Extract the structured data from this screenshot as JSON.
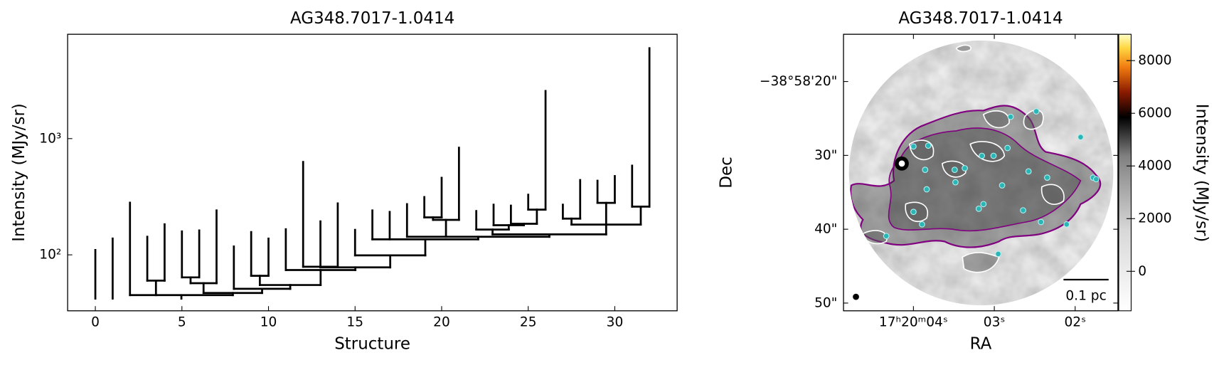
{
  "chart_data": [
    {
      "type": "dendrogram",
      "title": "AG348.7017-1.0414",
      "xlabel": "Structure",
      "ylabel": "Intensity (MJy/sr)",
      "xlim": [
        -1.6,
        33.6
      ],
      "ylim": [
        33,
        7900
      ],
      "yscale": "log",
      "xticks": [
        0,
        5,
        10,
        15,
        20,
        25,
        30
      ],
      "yticks": [
        {
          "value": 100,
          "label": "10²"
        },
        {
          "value": 1000,
          "label": "10³"
        }
      ],
      "color": "#000000",
      "structures": [
        0,
        1,
        2,
        3,
        4,
        5,
        6,
        7,
        8,
        9,
        10,
        11,
        12,
        13,
        14,
        15,
        16,
        17,
        18,
        19,
        20,
        21,
        22,
        23,
        24,
        25,
        26,
        27,
        28,
        29,
        30,
        31,
        32
      ],
      "leaves": {
        "peaks": [
          110,
          138,
          281,
          143,
          183,
          159,
          162,
          241,
          118,
          157,
          138,
          166,
          630,
          194,
          277,
          164,
          241,
          234,
          273,
          314,
          460,
          835,
          238,
          270,
          265,
          329,
          2570,
          270,
          440,
          434,
          476,
          585,
          6000
        ],
        "bases": [
          42,
          42,
          45,
          60,
          60,
          64,
          64,
          57,
          51,
          66,
          66,
          74,
          79,
          79,
          79,
          99,
          136,
          136,
          143,
          210,
          210,
          200,
          165,
          180,
          185,
          245,
          245,
          205,
          205,
          280,
          280,
          260,
          260
        ]
      },
      "branches": [
        {
          "level": 60,
          "x": [
            3,
            4
          ],
          "base": 45
        },
        {
          "level": 64,
          "x": [
            5,
            6
          ],
          "base": 57
        },
        {
          "level": 57,
          "x": [
            5.5,
            7
          ],
          "base": 47
        },
        {
          "level": 66,
          "x": [
            9,
            10
          ],
          "base": 55
        },
        {
          "level": 79,
          "x": [
            12,
            14
          ],
          "base": 78
        },
        {
          "level": 210,
          "x": [
            19,
            20
          ],
          "base": 200
        },
        {
          "level": 200,
          "x": [
            19.5,
            21
          ],
          "base": 143
        },
        {
          "level": 245,
          "x": [
            25,
            26
          ],
          "base": 185
        },
        {
          "level": 185,
          "x": [
            24,
            25.5
          ],
          "base": 180
        },
        {
          "level": 180,
          "x": [
            23,
            24.75
          ],
          "base": 165
        },
        {
          "level": 165,
          "x": [
            22,
            23.88
          ],
          "base": 150
        },
        {
          "level": 205,
          "x": [
            27,
            28
          ],
          "base": 182
        },
        {
          "level": 280,
          "x": [
            29,
            30
          ],
          "base": 182
        },
        {
          "level": 260,
          "x": [
            31,
            32
          ],
          "base": 182
        },
        {
          "level": 182,
          "x": [
            27.5,
            31.5
          ],
          "base": 150
        },
        {
          "level": 150,
          "x": [
            22.94,
            29.5
          ],
          "base": 143
        },
        {
          "level": 143,
          "x": [
            18,
            26.22
          ],
          "base": 136
        },
        {
          "level": 136,
          "x": [
            16,
            22.11
          ],
          "base": 99
        },
        {
          "level": 99,
          "x": [
            15,
            19.06
          ],
          "base": 78
        },
        {
          "level": 78,
          "x": [
            13,
            17.03
          ],
          "base": 74
        },
        {
          "level": 74,
          "x": [
            11,
            15.02
          ],
          "base": 55
        },
        {
          "level": 55,
          "x": [
            9.5,
            13.01
          ],
          "base": 51
        },
        {
          "level": 51,
          "x": [
            8,
            11.26
          ],
          "base": 47
        },
        {
          "level": 47,
          "x": [
            6.25,
            9.63
          ],
          "base": 45
        },
        {
          "level": 45,
          "x": [
            2,
            7.94
          ],
          "base": 42
        }
      ]
    },
    {
      "type": "image",
      "title": "AG348.7017-1.0414",
      "xlabel": "RA",
      "ylabel": "Dec",
      "xlim": [
        260.020271,
        260.006129
      ],
      "ylim": [
        -38.980847,
        -38.970444
      ],
      "xticks": [
        {
          "value": 260.016667,
          "label": "17ʰ20ᵐ04ˢ"
        },
        {
          "value": 260.0125,
          "label": "03ˢ"
        },
        {
          "value": 260.008333,
          "label": "02ˢ"
        }
      ],
      "yticks": [
        {
          "value": -38.972222,
          "label": "−38°58'20\""
        },
        {
          "value": -38.975,
          "label": "30\""
        },
        {
          "value": -38.977778,
          "label": "40\""
        },
        {
          "value": -38.980556,
          "label": "50\""
        }
      ],
      "colorbar": {
        "label": "Intensity (MJy/sr)",
        "lim": [
          -1500,
          9000
        ],
        "ticks": [
          0,
          2000,
          4000,
          6000,
          8000
        ]
      },
      "scalebar": "0.1 pc",
      "contour_colors": [
        "#800080",
        "#ffffff"
      ],
      "peak_color": "#2bb5b5"
    }
  ]
}
